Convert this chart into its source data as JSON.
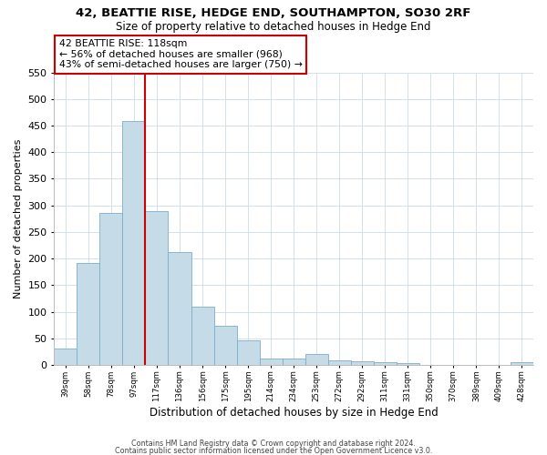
{
  "title": "42, BEATTIE RISE, HEDGE END, SOUTHAMPTON, SO30 2RF",
  "subtitle": "Size of property relative to detached houses in Hedge End",
  "xlabel": "Distribution of detached houses by size in Hedge End",
  "ylabel": "Number of detached properties",
  "bar_color": "#c5dce8",
  "bar_edge_color": "#7aaecb",
  "background_color": "#ffffff",
  "grid_color": "#ccdae6",
  "vline_color": "#cc0000",
  "annotation_title": "42 BEATTIE RISE: 118sqm",
  "annotation_line1": "← 56% of detached houses are smaller (968)",
  "annotation_line2": "43% of semi-detached houses are larger (750) →",
  "annotation_box_color": "#ffffff",
  "annotation_box_edge": "#cc0000",
  "bin_labels": [
    "39sqm",
    "58sqm",
    "78sqm",
    "97sqm",
    "117sqm",
    "136sqm",
    "156sqm",
    "175sqm",
    "195sqm",
    "214sqm",
    "234sqm",
    "253sqm",
    "272sqm",
    "292sqm",
    "311sqm",
    "331sqm",
    "350sqm",
    "370sqm",
    "389sqm",
    "409sqm",
    "428sqm"
  ],
  "bar_values": [
    30,
    192,
    285,
    458,
    290,
    212,
    110,
    74,
    46,
    12,
    12,
    20,
    8,
    7,
    5,
    4,
    0,
    0,
    0,
    0,
    5
  ],
  "ylim": [
    0,
    550
  ],
  "yticks": [
    0,
    50,
    100,
    150,
    200,
    250,
    300,
    350,
    400,
    450,
    500,
    550
  ],
  "vline_bin_index": 4,
  "footer1": "Contains HM Land Registry data © Crown copyright and database right 2024.",
  "footer2": "Contains public sector information licensed under the Open Government Licence v3.0."
}
